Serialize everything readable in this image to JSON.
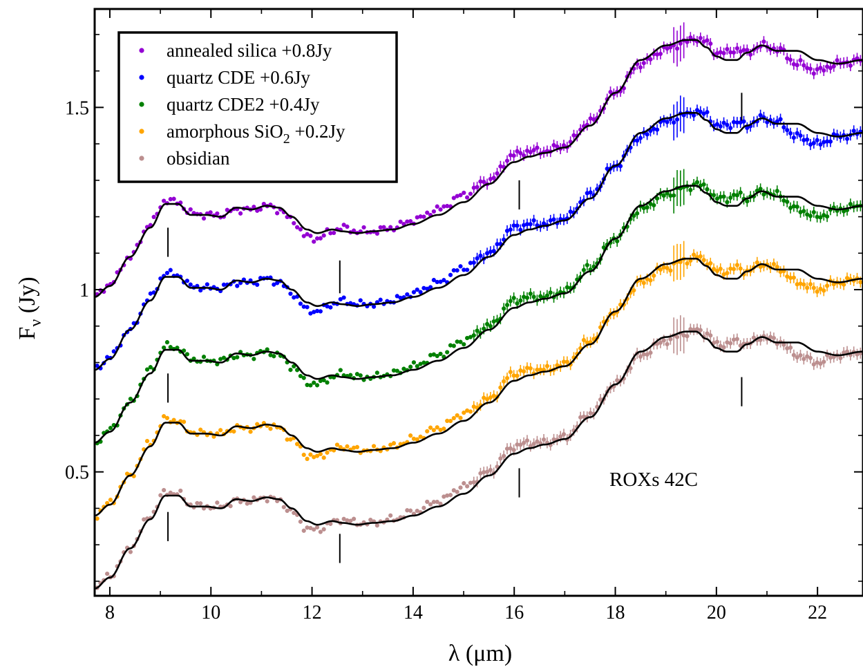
{
  "chart_data": {
    "type": "scatter",
    "title": "",
    "xlabel": "λ (μm)",
    "ylabel_main": "F",
    "ylabel_sub": "ν",
    "ylabel_tail": " (Jy)",
    "xlim": [
      7.7,
      22.9
    ],
    "ylim": [
      0.16,
      1.77
    ],
    "x_ticks": [
      8,
      10,
      12,
      14,
      16,
      18,
      20,
      22
    ],
    "x_tick_labels": [
      "8",
      "10",
      "12",
      "14",
      "16",
      "18",
      "20",
      "22"
    ],
    "y_ticks": [
      0.5,
      1.0,
      1.5
    ],
    "y_tick_labels": [
      "0.5",
      "1",
      "1.5"
    ],
    "annotation": "ROXs 42C",
    "legend_position": "top-left",
    "feature_lines": [
      {
        "x": 9.15,
        "y_ranges": [
          [
            0.31,
            0.39
          ],
          [
            0.69,
            0.77
          ],
          [
            1.09,
            1.17
          ]
        ]
      },
      {
        "x": 12.55,
        "y_ranges": [
          [
            0.25,
            0.33
          ],
          [
            0.99,
            1.08
          ]
        ]
      },
      {
        "x": 16.1,
        "y_ranges": [
          [
            0.43,
            0.51
          ],
          [
            1.22,
            1.3
          ]
        ]
      },
      {
        "x": 20.5,
        "y_ranges": [
          [
            0.68,
            0.76
          ],
          [
            1.46,
            1.54
          ]
        ]
      }
    ],
    "base_profile": {
      "x": [
        7.7,
        8.0,
        8.4,
        8.8,
        9.1,
        9.35,
        9.6,
        9.9,
        10.2,
        10.5,
        10.8,
        11.1,
        11.35,
        11.6,
        11.9,
        12.1,
        12.4,
        12.6,
        12.9,
        13.2,
        13.6,
        14.0,
        14.5,
        15.0,
        15.5,
        16.0,
        16.3,
        16.6,
        17.0,
        17.5,
        18.0,
        18.5,
        19.0,
        19.4,
        19.6,
        19.8,
        20.0,
        20.2,
        20.4,
        20.6,
        20.9,
        21.2,
        21.6,
        22.0,
        22.4,
        22.9
      ],
      "fit": [
        0.18,
        0.21,
        0.29,
        0.37,
        0.435,
        0.435,
        0.405,
        0.405,
        0.4,
        0.425,
        0.42,
        0.43,
        0.425,
        0.4,
        0.365,
        0.355,
        0.365,
        0.36,
        0.355,
        0.36,
        0.365,
        0.38,
        0.405,
        0.44,
        0.49,
        0.55,
        0.565,
        0.575,
        0.59,
        0.65,
        0.74,
        0.83,
        0.87,
        0.885,
        0.885,
        0.865,
        0.84,
        0.83,
        0.83,
        0.85,
        0.87,
        0.855,
        0.855,
        0.83,
        0.82,
        0.83
      ],
      "data": [
        0.18,
        0.215,
        0.29,
        0.38,
        0.445,
        0.44,
        0.41,
        0.405,
        0.405,
        0.42,
        0.42,
        0.43,
        0.42,
        0.39,
        0.345,
        0.34,
        0.36,
        0.37,
        0.36,
        0.36,
        0.37,
        0.39,
        0.42,
        0.46,
        0.5,
        0.57,
        0.58,
        0.58,
        0.595,
        0.66,
        0.74,
        0.82,
        0.86,
        0.88,
        0.89,
        0.88,
        0.85,
        0.85,
        0.86,
        0.85,
        0.87,
        0.86,
        0.82,
        0.8,
        0.82,
        0.83
      ]
    },
    "series": [
      {
        "name": "annealed silica +0.8Jy",
        "offset": 0.8,
        "color": "#9400D3"
      },
      {
        "name": "quartz CDE +0.6Jy",
        "offset": 0.6,
        "color": "#0000FF"
      },
      {
        "name": "quartz CDE2 +0.4Jy",
        "offset": 0.4,
        "color": "#008000"
      },
      {
        "name": "amorphous SiO",
        "name_sub": "2",
        "name_tail": " +0.2Jy",
        "offset": 0.2,
        "color": "#FFA500"
      },
      {
        "name": "obsidian",
        "offset": 0.0,
        "color": "#BC8F8F"
      }
    ]
  }
}
